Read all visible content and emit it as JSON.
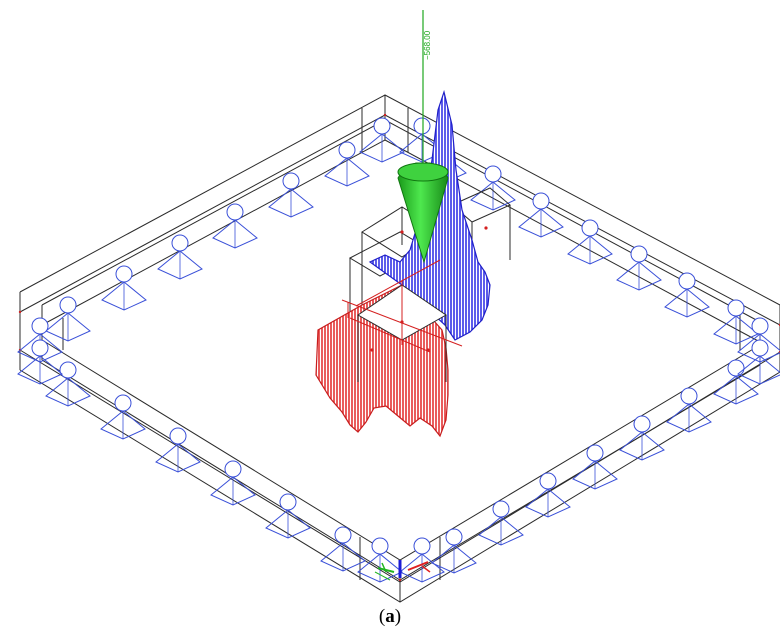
{
  "figure": {
    "force_label": "−568.00",
    "caption_open": "(",
    "caption_letter": "a",
    "caption_close": ")"
  },
  "colors": {
    "frame": "#2b2b2b",
    "support": "#3a50d8",
    "positive_diagram": "#3434e6",
    "negative_diagram": "#e43434",
    "force_cone": "#2fd02f",
    "label": "#1fa81f"
  },
  "icons": [
    "pinned-support-icon",
    "force-arrow-icon",
    "axis-triad-icon"
  ]
}
